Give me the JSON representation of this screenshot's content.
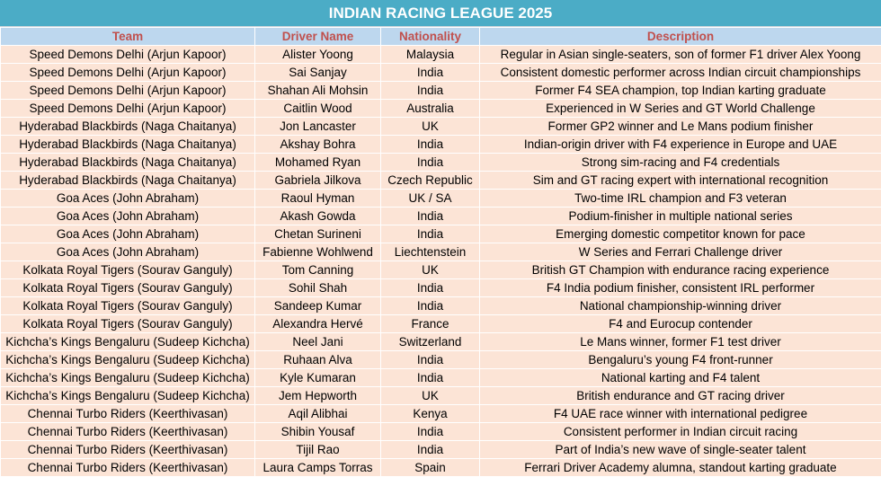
{
  "title": "INDIAN RACING LEAGUE 2025",
  "headers": {
    "team": "Team",
    "driver": "Driver Name",
    "nationality": "Nationality",
    "description": "Description"
  },
  "colors": {
    "title_bg": "#4bacc6",
    "header_bg": "#bdd7ee",
    "header_text": "#c0504d",
    "row_bg": "#fce4d6"
  },
  "rows": [
    {
      "team": "Speed Demons Delhi (Arjun Kapoor)",
      "driver": "Alister Yoong",
      "nationality": "Malaysia",
      "description": "Regular in Asian single-seaters, son of former F1 driver Alex Yoong"
    },
    {
      "team": "Speed Demons Delhi (Arjun Kapoor)",
      "driver": "Sai Sanjay",
      "nationality": "India",
      "description": "Consistent domestic performer across Indian circuit championships"
    },
    {
      "team": "Speed Demons Delhi (Arjun Kapoor)",
      "driver": "Shahan Ali Mohsin",
      "nationality": "India",
      "description": "Former F4 SEA champion, top Indian karting graduate"
    },
    {
      "team": "Speed Demons Delhi (Arjun Kapoor)",
      "driver": "Caitlin Wood",
      "nationality": "Australia",
      "description": "Experienced in W Series and GT World Challenge"
    },
    {
      "team": "Hyderabad Blackbirds (Naga Chaitanya)",
      "driver": "Jon Lancaster",
      "nationality": "UK",
      "description": "Former GP2 winner and Le Mans podium finisher"
    },
    {
      "team": "Hyderabad Blackbirds (Naga Chaitanya)",
      "driver": "Akshay Bohra",
      "nationality": "India",
      "description": "Indian-origin driver with F4 experience in Europe and UAE"
    },
    {
      "team": "Hyderabad Blackbirds (Naga Chaitanya)",
      "driver": "Mohamed Ryan",
      "nationality": "India",
      "description": "Strong sim-racing and F4 credentials"
    },
    {
      "team": "Hyderabad Blackbirds (Naga Chaitanya)",
      "driver": "Gabriela Jilkova",
      "nationality": "Czech Republic",
      "description": "Sim and GT racing expert with international recognition"
    },
    {
      "team": "Goa Aces (John Abraham)",
      "driver": "Raoul Hyman",
      "nationality": "UK / SA",
      "description": "Two-time IRL champion and F3 veteran"
    },
    {
      "team": "Goa Aces (John Abraham)",
      "driver": "Akash Gowda",
      "nationality": "India",
      "description": "Podium-finisher in multiple national series"
    },
    {
      "team": "Goa Aces (John Abraham)",
      "driver": "Chetan Surineni",
      "nationality": "India",
      "description": "Emerging domestic competitor known for pace"
    },
    {
      "team": "Goa Aces (John Abraham)",
      "driver": "Fabienne Wohlwend",
      "nationality": "Liechtenstein",
      "description": "W Series and Ferrari Challenge driver"
    },
    {
      "team": "Kolkata Royal Tigers (Sourav Ganguly)",
      "driver": "Tom Canning",
      "nationality": "UK",
      "description": "British GT Champion with endurance racing experience"
    },
    {
      "team": "Kolkata Royal Tigers (Sourav Ganguly)",
      "driver": "Sohil Shah",
      "nationality": "India",
      "description": "F4 India podium finisher, consistent IRL performer"
    },
    {
      "team": "Kolkata Royal Tigers (Sourav Ganguly)",
      "driver": "Sandeep Kumar",
      "nationality": "India",
      "description": "National championship-winning driver"
    },
    {
      "team": "Kolkata Royal Tigers (Sourav Ganguly)",
      "driver": "Alexandra Hervé",
      "nationality": "France",
      "description": "F4 and Eurocup contender"
    },
    {
      "team": "Kichcha’s Kings Bengaluru (Sudeep Kichcha)",
      "driver": "Neel Jani",
      "nationality": "Switzerland",
      "description": "Le Mans winner, former F1 test driver"
    },
    {
      "team": "Kichcha’s Kings Bengaluru (Sudeep Kichcha)",
      "driver": "Ruhaan Alva",
      "nationality": "India",
      "description": "Bengaluru’s young F4 front-runner"
    },
    {
      "team": "Kichcha’s Kings Bengaluru (Sudeep Kichcha)",
      "driver": "Kyle Kumaran",
      "nationality": "India",
      "description": "National karting and F4 talent"
    },
    {
      "team": "Kichcha’s Kings Bengaluru (Sudeep Kichcha)",
      "driver": "Jem Hepworth",
      "nationality": "UK",
      "description": "British endurance and GT racing driver"
    },
    {
      "team": "Chennai Turbo Riders (Keerthivasan)",
      "driver": "Aqil Alibhai",
      "nationality": "Kenya",
      "description": "F4 UAE race winner with international pedigree"
    },
    {
      "team": "Chennai Turbo Riders (Keerthivasan)",
      "driver": "Shibin Yousaf",
      "nationality": "India",
      "description": "Consistent performer in Indian circuit racing"
    },
    {
      "team": "Chennai Turbo Riders (Keerthivasan)",
      "driver": "Tijil Rao",
      "nationality": "India",
      "description": "Part of India’s new wave of single-seater talent"
    },
    {
      "team": "Chennai Turbo Riders (Keerthivasan)",
      "driver": "Laura Camps Torras",
      "nationality": "Spain",
      "description": "Ferrari Driver Academy alumna, standout karting graduate"
    }
  ]
}
